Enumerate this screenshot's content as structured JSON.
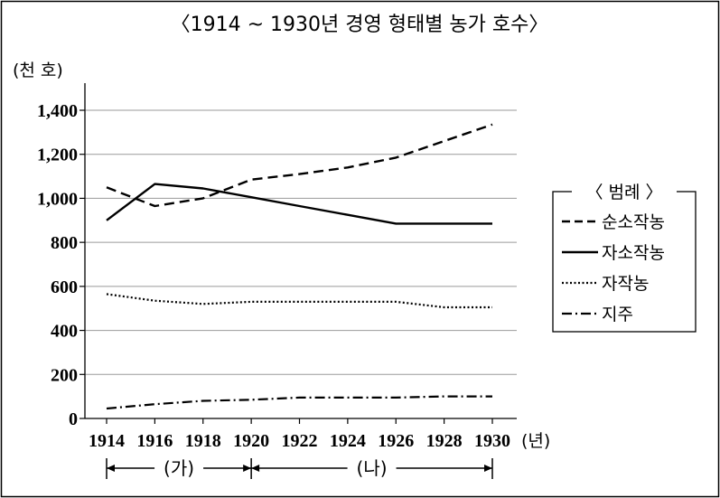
{
  "chart_data": {
    "type": "line",
    "title": "〈1914 ~ 1930년 경영 형태별 농가 호수〉",
    "ylabel": "(천 호)",
    "xlabel": "(년)",
    "x": [
      1914,
      1916,
      1918,
      1920,
      1922,
      1924,
      1926,
      1928,
      1930
    ],
    "x_tick_labels": [
      "1914",
      "1916",
      "1918",
      "1920",
      "1922",
      "1924",
      "1926",
      "1928",
      "1930"
    ],
    "y_tick_labels": [
      "0",
      "200",
      "400",
      "600",
      "800",
      "1,000",
      "1,200",
      "1,400"
    ],
    "ylim": [
      0,
      1400
    ],
    "grid": true,
    "legend_title": "〈 범례 〉",
    "legend_position": "right",
    "series": [
      {
        "name": "순소작농",
        "style": "dashed",
        "values": [
          1050,
          965,
          1000,
          1085,
          1110,
          1140,
          1185,
          1260,
          1335
        ]
      },
      {
        "name": "자소작농",
        "style": "solid",
        "values": [
          900,
          1065,
          1045,
          1005,
          965,
          925,
          885,
          885,
          885
        ]
      },
      {
        "name": "자작농",
        "style": "dotted",
        "values": [
          565,
          535,
          520,
          530,
          530,
          530,
          530,
          505,
          505
        ]
      },
      {
        "name": "지주",
        "style": "dashdot",
        "values": [
          45,
          65,
          80,
          85,
          95,
          95,
          95,
          100,
          100
        ]
      }
    ],
    "periods": [
      {
        "label": "(가)",
        "from": 1914,
        "to": 1920
      },
      {
        "label": "(나)",
        "from": 1920,
        "to": 1930
      }
    ]
  }
}
